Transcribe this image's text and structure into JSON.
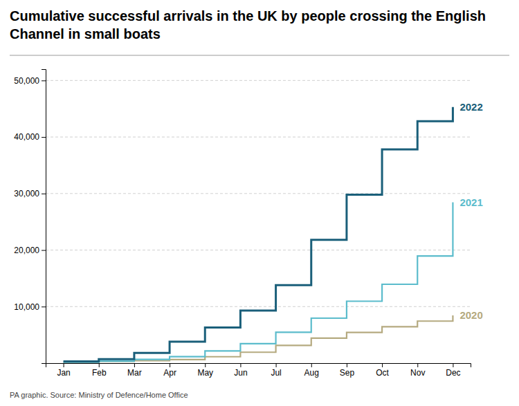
{
  "chart_data": {
    "type": "step",
    "title": "Cumulative successful arrivals in the UK by people crossing the English Channel in small boats",
    "annotations": [
      "PA graphic. Source: Ministry of Defence/Home Office"
    ],
    "categories": [
      "Jan",
      "Feb",
      "Mar",
      "Apr",
      "May",
      "Jun",
      "Jul",
      "Aug",
      "Sep",
      "Oct",
      "Nov",
      "Dec"
    ],
    "series": [
      {
        "name": "2020",
        "color": "#b5aa80",
        "values": [
          150,
          330,
          430,
          630,
          1130,
          1930,
          3130,
          4430,
          5430,
          6430,
          7430,
          8430
        ]
      },
      {
        "name": "2021",
        "color": "#5bbccc",
        "values": [
          150,
          350,
          650,
          1150,
          2150,
          3450,
          5450,
          7950,
          10950,
          13950,
          18950,
          28450
        ]
      },
      {
        "name": "2022",
        "color": "#1a5f7a",
        "values": [
          300,
          700,
          1800,
          3800,
          6300,
          9300,
          13800,
          21800,
          29800,
          37800,
          42800,
          45300
        ]
      }
    ],
    "ylim": [
      0,
      52000
    ],
    "yticks": [
      {
        "value": 10000,
        "label": "10,000"
      },
      {
        "value": 20000,
        "label": "20,000"
      },
      {
        "value": 30000,
        "label": "30,000"
      },
      {
        "value": 40000,
        "label": "40,000"
      },
      {
        "value": 50000,
        "label": "50,000"
      }
    ],
    "grid": true
  }
}
